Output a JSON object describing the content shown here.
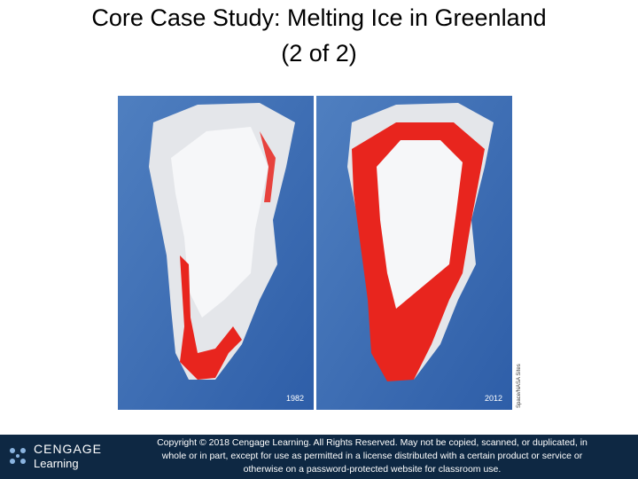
{
  "header": {
    "title_lines": [
      "Core Case Study: Melting Ice in Greenland",
      "(2 of 2)"
    ]
  },
  "figure": {
    "panels": [
      {
        "year": "1982"
      },
      {
        "year": "2012"
      }
    ],
    "credit": "Space/NASA Sites"
  },
  "footer": {
    "logo": {
      "brand": "CENGAGE",
      "sub": "Learning"
    },
    "copyright_lines": [
      "Copyright © 2018 Cengage Learning. All Rights Reserved. May not be copied, scanned, or duplicated, in",
      "whole or in part, except for use as permitted in a license distributed with a certain product or service or",
      "otherwise on a password-protected website for classroom use."
    ]
  }
}
